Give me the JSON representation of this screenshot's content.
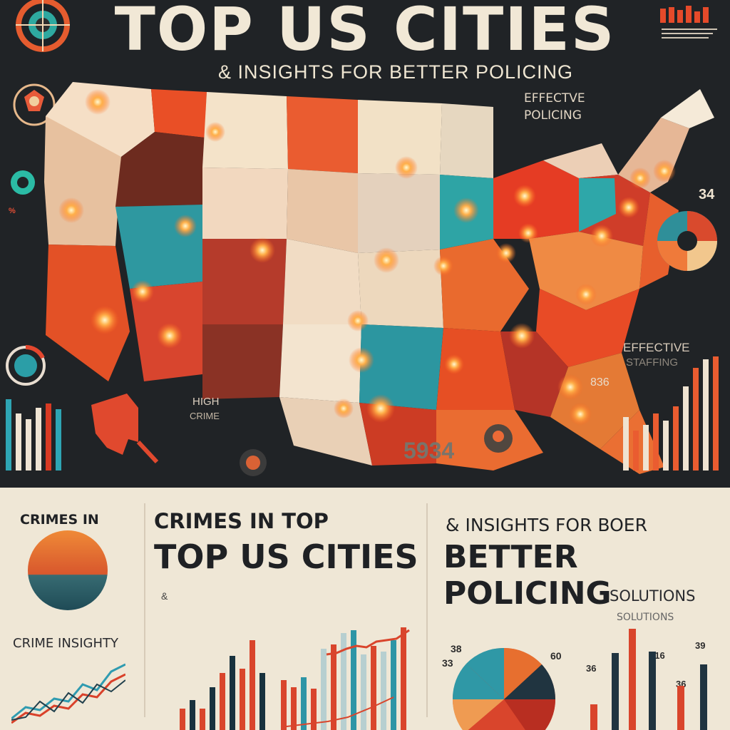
{
  "header": {
    "title": "TOP US CITIES",
    "subtitle": "& INSIGHTS FOR BETTER POLICING"
  },
  "map_labels": {
    "effective_policing": "EFFECTVE\nPOLICING",
    "right_number": "34",
    "effective_staffing_1": "EFFECTIVE",
    "effective_staffing_2": "STAFFING",
    "high_crime_1": "HIGH",
    "high_crime_2": "CRIME",
    "number_center": "5934",
    "number_right": "836"
  },
  "bottom_left": {
    "title": "CRIMES IN",
    "subtitle": "CRIME INSIGHTY"
  },
  "bottom_middle": {
    "line1": "CRIMES IN TOP",
    "line2": "TOP US CITIES",
    "small_marker": "&"
  },
  "bottom_right": {
    "line1": "& INSIGHTS FOR BOER",
    "line2": "BETTER POLICING",
    "line3": "SOLUTIONS",
    "line4": "SOLUTIONS",
    "pie_label_1": "38",
    "pie_label_2": "33",
    "pie_label_3": "60",
    "bar_label_1": "36",
    "bar_label_2": "316",
    "bar_label_3": "39",
    "bar_label_4": "36"
  },
  "colors": {
    "dark_bg": "#202326",
    "cream": "#efe7d6",
    "red": "#d83a23",
    "orange": "#e96f2f",
    "teal": "#2f9ca4",
    "navy": "#18323e",
    "sand": "#e8c89a"
  }
}
